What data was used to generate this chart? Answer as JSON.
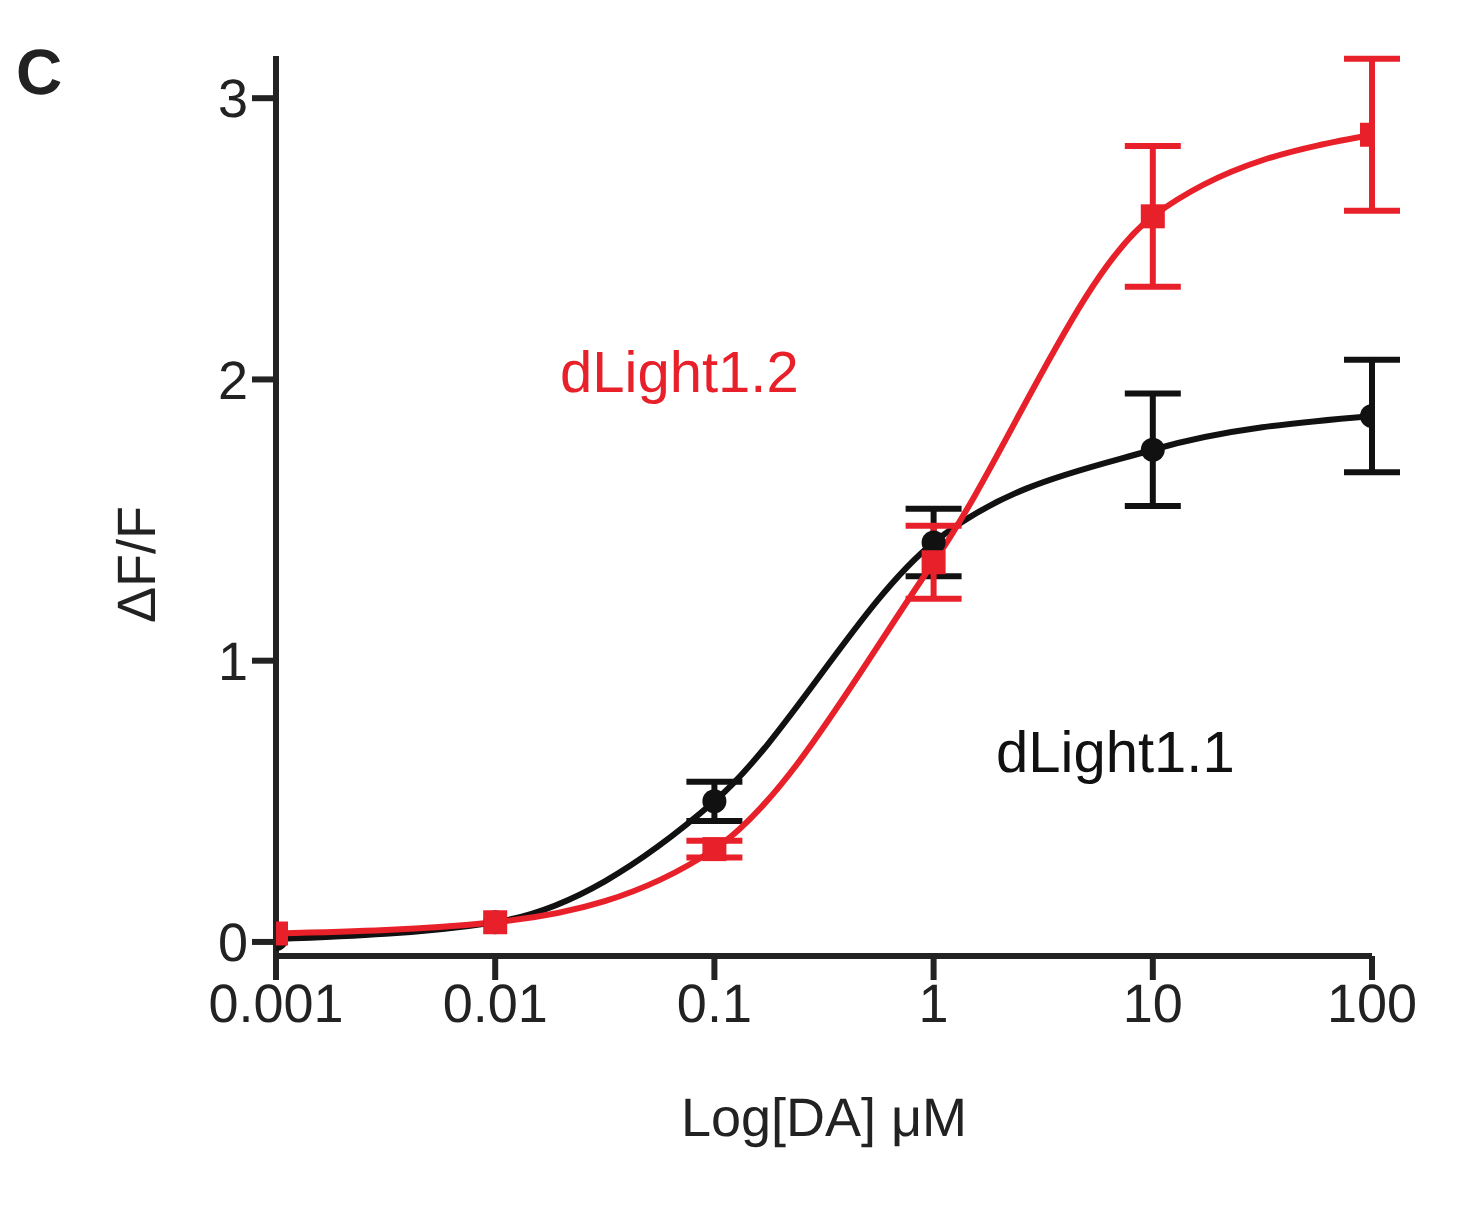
{
  "chart_data": {
    "type": "line",
    "xlabel": "Log[DA] μM",
    "ylabel": "ΔF/F",
    "annotations": [
      "C"
    ],
    "log": "x",
    "x": [
      0.001,
      0.01,
      0.1,
      1,
      10,
      100
    ],
    "xlim": [
      0.001,
      100
    ],
    "xticks": [
      0.001,
      0.01,
      0.1,
      1,
      10,
      100
    ],
    "ylim": [
      -0.05,
      3.15
    ],
    "yticks": [
      0,
      1,
      2,
      3
    ],
    "grid": false,
    "legend": false,
    "series": [
      {
        "name": "dLight1.2",
        "color": "#e8202a",
        "marker": "square",
        "values": [
          0.03,
          0.07,
          0.33,
          1.35,
          2.58,
          2.87
        ],
        "errors": [
          null,
          null,
          0.03,
          0.13,
          0.25,
          0.27
        ]
      },
      {
        "name": "dLight1.1",
        "color": "#111111",
        "marker": "circle",
        "values": [
          0.01,
          0.07,
          0.5,
          1.42,
          1.75,
          1.87
        ],
        "errors": [
          null,
          null,
          0.07,
          0.12,
          0.2,
          0.2
        ]
      }
    ]
  }
}
